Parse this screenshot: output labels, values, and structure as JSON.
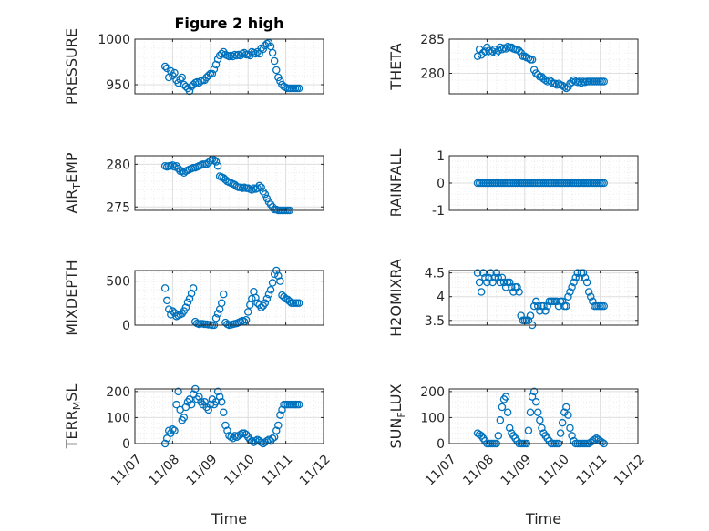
{
  "colors": {
    "marker": "#0072bd",
    "axis": "#262626",
    "grid": "#dfdfdf",
    "minorgrid": "#ececec"
  },
  "chart_data": [
    {
      "type": "scatter",
      "title": "Figure 2 high",
      "ylabel": "PRESSURE",
      "ylabel_sub": "",
      "ylim": [
        940,
        1000
      ],
      "yticks": [
        950,
        1000
      ],
      "ytick_labels": [
        "950",
        "1000"
      ],
      "xlabel": "",
      "show_xticks": false,
      "x": [
        7.8,
        7.85,
        7.9,
        7.95,
        8.0,
        8.05,
        8.1,
        8.15,
        8.2,
        8.25,
        8.3,
        8.35,
        8.4,
        8.45,
        8.5,
        8.55,
        8.6,
        8.65,
        8.7,
        8.75,
        8.8,
        8.85,
        8.9,
        8.95,
        9.0,
        9.05,
        9.1,
        9.15,
        9.2,
        9.25,
        9.3,
        9.35,
        9.4,
        9.45,
        9.5,
        9.55,
        9.6,
        9.65,
        9.7,
        9.75,
        9.8,
        9.85,
        9.9,
        9.95,
        10.0,
        10.05,
        10.1,
        10.15,
        10.2,
        10.25,
        10.3,
        10.35,
        10.4,
        10.45,
        10.5,
        10.55,
        10.6,
        10.65,
        10.7,
        10.75,
        10.8,
        10.85,
        10.9,
        10.95,
        11.0,
        11.05,
        11.1,
        11.15,
        11.2,
        11.25,
        11.3,
        11.35
      ],
      "y": [
        970,
        968,
        958,
        965,
        960,
        963,
        955,
        952,
        956,
        958,
        950,
        948,
        946,
        943,
        948,
        950,
        952,
        953,
        952,
        954,
        955,
        955,
        958,
        960,
        962,
        962,
        967,
        972,
        978,
        982,
        984,
        986,
        983,
        982,
        981,
        982,
        981,
        983,
        982,
        983,
        982,
        984,
        985,
        983,
        983,
        982,
        986,
        985,
        984,
        986,
        984,
        990,
        989,
        993,
        995,
        996,
        992,
        985,
        976,
        966,
        958,
        954,
        950,
        948,
        947,
        946,
        946,
        946,
        946,
        946,
        946,
        946
      ]
    },
    {
      "type": "scatter",
      "title": "",
      "ylabel": "THETA",
      "ylabel_sub": "",
      "ylim": [
        277,
        285
      ],
      "yticks": [
        280,
        285
      ],
      "ytick_labels": [
        "280",
        "285"
      ],
      "xlabel": "",
      "show_xticks": false,
      "x": [
        7.75,
        7.8,
        7.85,
        7.9,
        7.95,
        8.0,
        8.05,
        8.1,
        8.15,
        8.2,
        8.25,
        8.3,
        8.35,
        8.4,
        8.45,
        8.5,
        8.55,
        8.6,
        8.65,
        8.7,
        8.75,
        8.8,
        8.85,
        8.9,
        8.95,
        9.0,
        9.05,
        9.1,
        9.15,
        9.2,
        9.25,
        9.3,
        9.35,
        9.4,
        9.45,
        9.5,
        9.55,
        9.6,
        9.65,
        9.7,
        9.75,
        9.8,
        9.85,
        9.9,
        9.95,
        10.0,
        10.05,
        10.1,
        10.15,
        10.2,
        10.25,
        10.3,
        10.35,
        10.4,
        10.45,
        10.5,
        10.55,
        10.6,
        10.65,
        10.7,
        10.75,
        10.8,
        10.85,
        10.9,
        10.95,
        11.0,
        11.05,
        11.1
      ],
      "y": [
        282.5,
        283.5,
        282.7,
        283.0,
        283.2,
        283.8,
        283.3,
        283.0,
        283.2,
        283.5,
        283.0,
        283.3,
        283.8,
        283.5,
        283.7,
        283.6,
        283.9,
        283.8,
        283.8,
        283.6,
        283.5,
        283.5,
        283.3,
        283.0,
        282.5,
        282.5,
        282.3,
        282.2,
        282.0,
        282.0,
        280.5,
        280.0,
        279.8,
        279.5,
        279.5,
        279.2,
        279.0,
        278.8,
        279.0,
        278.8,
        278.5,
        278.5,
        278.3,
        278.5,
        278.3,
        278.2,
        278.0,
        277.8,
        278.0,
        278.5,
        278.7,
        279.0,
        278.8,
        278.7,
        278.8,
        278.6,
        278.8,
        278.7,
        278.8,
        278.8,
        278.8,
        278.8,
        278.8,
        278.8,
        278.8,
        278.8,
        278.8,
        278.8
      ]
    },
    {
      "type": "scatter",
      "title": "",
      "ylabel": "AIR",
      "ylabel_sub": "T",
      "ylabel_rest": "EMP",
      "ylim": [
        274.6,
        281
      ],
      "yticks": [
        275,
        280
      ],
      "ytick_labels": [
        "275",
        "280"
      ],
      "xlabel": "",
      "show_xticks": false,
      "x": [
        7.8,
        7.85,
        7.9,
        7.95,
        8.0,
        8.05,
        8.1,
        8.15,
        8.2,
        8.25,
        8.3,
        8.35,
        8.4,
        8.45,
        8.5,
        8.55,
        8.6,
        8.65,
        8.7,
        8.75,
        8.8,
        8.85,
        8.9,
        8.95,
        9.0,
        9.05,
        9.1,
        9.15,
        9.2,
        9.25,
        9.3,
        9.35,
        9.4,
        9.45,
        9.5,
        9.55,
        9.6,
        9.65,
        9.7,
        9.75,
        9.8,
        9.85,
        9.9,
        9.95,
        10.0,
        10.05,
        10.1,
        10.15,
        10.2,
        10.25,
        10.3,
        10.35,
        10.4,
        10.45,
        10.5,
        10.55,
        10.6,
        10.65,
        10.7,
        10.75,
        10.8,
        10.85,
        10.9,
        10.95,
        11.0,
        11.05,
        11.1
      ],
      "y": [
        279.8,
        279.7,
        279.8,
        279.8,
        279.9,
        279.7,
        279.8,
        279.5,
        279.2,
        279.2,
        279.0,
        279.2,
        279.3,
        279.4,
        279.5,
        279.6,
        279.6,
        279.7,
        279.8,
        279.9,
        280.0,
        280.0,
        280.0,
        280.2,
        280.4,
        280.6,
        280.5,
        280.3,
        279.8,
        278.6,
        278.5,
        278.4,
        278.2,
        278.0,
        277.9,
        277.8,
        277.7,
        277.6,
        277.4,
        277.3,
        277.3,
        277.2,
        277.3,
        277.2,
        277.2,
        277.1,
        277.0,
        277.2,
        277.1,
        277.2,
        277.5,
        277.3,
        276.8,
        276.5,
        276.0,
        275.6,
        275.3,
        275.0,
        274.7,
        274.7,
        274.6,
        274.6,
        274.6,
        274.6,
        274.6,
        274.6,
        274.6
      ]
    },
    {
      "type": "scatter",
      "title": "",
      "ylabel": "RAINFALL",
      "ylabel_sub": "",
      "ylim": [
        -1,
        1
      ],
      "yticks": [
        -1,
        0,
        1
      ],
      "ytick_labels": [
        "-1",
        "0",
        "1"
      ],
      "xlabel": "",
      "show_xticks": false,
      "x": [
        7.75,
        7.8,
        7.85,
        7.9,
        7.95,
        8.0,
        8.05,
        8.1,
        8.15,
        8.2,
        8.25,
        8.3,
        8.35,
        8.4,
        8.45,
        8.5,
        8.55,
        8.6,
        8.65,
        8.7,
        8.75,
        8.8,
        8.85,
        8.9,
        8.95,
        9.0,
        9.05,
        9.1,
        9.15,
        9.2,
        9.25,
        9.3,
        9.35,
        9.4,
        9.45,
        9.5,
        9.55,
        9.6,
        9.65,
        9.7,
        9.75,
        9.8,
        9.85,
        9.9,
        9.95,
        10.0,
        10.05,
        10.1,
        10.15,
        10.2,
        10.25,
        10.3,
        10.35,
        10.4,
        10.45,
        10.5,
        10.55,
        10.6,
        10.65,
        10.7,
        10.75,
        10.8,
        10.85,
        10.9,
        10.95,
        11.0,
        11.05,
        11.1
      ],
      "y": [
        0,
        0,
        0,
        0,
        0,
        0,
        0,
        0,
        0,
        0,
        0,
        0,
        0,
        0,
        0,
        0,
        0,
        0,
        0,
        0,
        0,
        0,
        0,
        0,
        0,
        0,
        0,
        0,
        0,
        0,
        0,
        0,
        0,
        0,
        0,
        0,
        0,
        0,
        0,
        0,
        0,
        0,
        0,
        0,
        0,
        0,
        0,
        0,
        0,
        0,
        0,
        0,
        0,
        0,
        0,
        0,
        0,
        0,
        0,
        0,
        0,
        0,
        0,
        0,
        0,
        0,
        0,
        0
      ]
    },
    {
      "type": "scatter",
      "title": "",
      "ylabel": "MIXDEPTH",
      "ylabel_sub": "",
      "ylim": [
        0,
        620
      ],
      "yticks": [
        0,
        500
      ],
      "ytick_labels": [
        "0",
        "500"
      ],
      "xlabel": "",
      "show_xticks": false,
      "x": [
        7.8,
        7.85,
        7.9,
        7.95,
        8.0,
        8.05,
        8.1,
        8.15,
        8.2,
        8.25,
        8.3,
        8.35,
        8.4,
        8.45,
        8.5,
        8.55,
        8.6,
        8.65,
        8.7,
        8.75,
        8.8,
        8.85,
        8.9,
        8.95,
        9.0,
        9.05,
        9.1,
        9.15,
        9.2,
        9.25,
        9.3,
        9.35,
        9.4,
        9.45,
        9.5,
        9.55,
        9.6,
        9.65,
        9.7,
        9.75,
        9.8,
        9.85,
        9.9,
        9.95,
        10.0,
        10.05,
        10.1,
        10.15,
        10.2,
        10.25,
        10.3,
        10.35,
        10.4,
        10.45,
        10.5,
        10.55,
        10.6,
        10.65,
        10.7,
        10.75,
        10.8,
        10.85,
        10.9,
        10.95,
        11.0,
        11.05,
        11.1,
        11.15,
        11.2,
        11.25,
        11.3,
        11.35
      ],
      "y": [
        420,
        280,
        180,
        120,
        160,
        140,
        100,
        110,
        120,
        130,
        160,
        200,
        260,
        300,
        360,
        420,
        40,
        20,
        10,
        15,
        15,
        10,
        10,
        5,
        5,
        0,
        0,
        80,
        130,
        180,
        250,
        350,
        30,
        10,
        0,
        5,
        10,
        15,
        20,
        30,
        40,
        50,
        40,
        60,
        150,
        230,
        300,
        380,
        310,
        250,
        230,
        200,
        220,
        250,
        300,
        350,
        400,
        480,
        580,
        620,
        560,
        500,
        340,
        320,
        300,
        290,
        270,
        250,
        250,
        250,
        250,
        250
      ]
    },
    {
      "type": "scatter",
      "title": "",
      "ylabel": "H2OMIXRA",
      "ylabel_sub": "",
      "ylim": [
        3.4,
        4.55
      ],
      "yticks": [
        3.5,
        4,
        4.5
      ],
      "ytick_labels": [
        "3.5",
        "4",
        "4.5"
      ],
      "xlabel": "",
      "show_xticks": false,
      "x": [
        7.75,
        7.8,
        7.85,
        7.9,
        7.95,
        8.0,
        8.05,
        8.1,
        8.15,
        8.2,
        8.25,
        8.3,
        8.35,
        8.4,
        8.45,
        8.5,
        8.55,
        8.6,
        8.65,
        8.7,
        8.75,
        8.8,
        8.85,
        8.9,
        8.95,
        9.0,
        9.05,
        9.1,
        9.15,
        9.2,
        9.25,
        9.3,
        9.35,
        9.4,
        9.45,
        9.5,
        9.55,
        9.6,
        9.65,
        9.7,
        9.75,
        9.8,
        9.85,
        9.9,
        9.95,
        10.0,
        10.05,
        10.1,
        10.15,
        10.2,
        10.25,
        10.3,
        10.35,
        10.4,
        10.45,
        10.5,
        10.55,
        10.6,
        10.65,
        10.7,
        10.75,
        10.8,
        10.85,
        10.9,
        10.95,
        11.0,
        11.05,
        11.1
      ],
      "y": [
        4.5,
        4.3,
        4.1,
        4.5,
        4.4,
        4.3,
        4.4,
        4.5,
        4.3,
        4.4,
        4.5,
        4.4,
        4.3,
        4.4,
        4.3,
        4.2,
        4.3,
        4.3,
        4.2,
        4.1,
        4.2,
        4.2,
        4.1,
        3.6,
        3.5,
        3.5,
        3.5,
        3.5,
        3.6,
        3.4,
        3.8,
        3.9,
        3.8,
        3.7,
        3.8,
        3.8,
        3.7,
        3.8,
        3.9,
        3.9,
        3.9,
        3.9,
        3.9,
        3.8,
        3.9,
        3.9,
        3.8,
        3.8,
        4.0,
        4.1,
        4.2,
        4.3,
        4.4,
        4.5,
        4.4,
        4.5,
        4.5,
        4.4,
        4.3,
        4.1,
        4.0,
        3.9,
        3.8,
        3.8,
        3.8,
        3.8,
        3.8,
        3.8
      ]
    },
    {
      "type": "scatter",
      "title": "",
      "ylabel": "TERR",
      "ylabel_sub": "M",
      "ylabel_rest": "SL",
      "ylim": [
        0,
        210
      ],
      "yticks": [
        0,
        100,
        200
      ],
      "ytick_labels": [
        "0",
        "100",
        "200"
      ],
      "xlabel": "Time",
      "show_xticks": true,
      "x": [
        7.8,
        7.85,
        7.9,
        7.95,
        8.0,
        8.05,
        8.1,
        8.15,
        8.2,
        8.25,
        8.3,
        8.35,
        8.4,
        8.45,
        8.5,
        8.55,
        8.6,
        8.65,
        8.7,
        8.75,
        8.8,
        8.85,
        8.9,
        8.95,
        9.0,
        9.05,
        9.1,
        9.15,
        9.2,
        9.25,
        9.3,
        9.35,
        9.4,
        9.45,
        9.5,
        9.55,
        9.6,
        9.65,
        9.7,
        9.75,
        9.8,
        9.85,
        9.9,
        9.95,
        10.0,
        10.05,
        10.1,
        10.15,
        10.2,
        10.25,
        10.3,
        10.35,
        10.4,
        10.45,
        10.5,
        10.55,
        10.6,
        10.65,
        10.7,
        10.75,
        10.8,
        10.85,
        10.9,
        10.95,
        11.0,
        11.05,
        11.1,
        11.15,
        11.2,
        11.25,
        11.3,
        11.35
      ],
      "y": [
        0,
        20,
        50,
        40,
        55,
        50,
        150,
        200,
        130,
        90,
        100,
        140,
        160,
        170,
        150,
        190,
        210,
        170,
        180,
        160,
        150,
        160,
        140,
        130,
        150,
        170,
        150,
        160,
        200,
        180,
        160,
        120,
        70,
        50,
        30,
        25,
        20,
        30,
        25,
        30,
        35,
        40,
        40,
        35,
        25,
        15,
        10,
        5,
        10,
        15,
        10,
        5,
        0,
        5,
        10,
        15,
        10,
        20,
        25,
        50,
        70,
        110,
        130,
        150,
        150,
        150,
        150,
        150,
        150,
        150,
        150,
        150
      ]
    },
    {
      "type": "scatter",
      "title": "",
      "ylabel": "SUN",
      "ylabel_sub": "F",
      "ylabel_rest": "LUX",
      "ylim": [
        0,
        210
      ],
      "yticks": [
        0,
        100,
        200
      ],
      "ytick_labels": [
        "0",
        "100",
        "200"
      ],
      "xlabel": "Time",
      "show_xticks": true,
      "x": [
        7.75,
        7.8,
        7.85,
        7.9,
        7.95,
        8.0,
        8.05,
        8.1,
        8.15,
        8.2,
        8.25,
        8.3,
        8.35,
        8.4,
        8.45,
        8.5,
        8.55,
        8.6,
        8.65,
        8.7,
        8.75,
        8.8,
        8.85,
        8.9,
        8.95,
        9.0,
        9.05,
        9.1,
        9.15,
        9.2,
        9.25,
        9.3,
        9.35,
        9.4,
        9.45,
        9.5,
        9.55,
        9.6,
        9.65,
        9.7,
        9.75,
        9.8,
        9.85,
        9.9,
        9.95,
        10.0,
        10.05,
        10.1,
        10.15,
        10.2,
        10.25,
        10.3,
        10.35,
        10.4,
        10.45,
        10.5,
        10.55,
        10.6,
        10.65,
        10.7,
        10.75,
        10.8,
        10.85,
        10.9,
        10.95,
        11.0,
        11.05,
        11.1
      ],
      "y": [
        40,
        35,
        30,
        20,
        10,
        0,
        0,
        0,
        0,
        0,
        0,
        30,
        90,
        140,
        170,
        180,
        120,
        60,
        40,
        30,
        20,
        10,
        0,
        0,
        0,
        0,
        0,
        50,
        120,
        180,
        200,
        160,
        120,
        90,
        60,
        40,
        30,
        20,
        10,
        0,
        0,
        0,
        0,
        0,
        40,
        80,
        120,
        140,
        110,
        60,
        30,
        10,
        0,
        0,
        0,
        0,
        0,
        0,
        0,
        0,
        5,
        10,
        15,
        20,
        15,
        10,
        5,
        0
      ]
    }
  ],
  "shared_x": {
    "xlim": [
      7,
      12
    ],
    "ticks": [
      7,
      8,
      9,
      10,
      11,
      12
    ],
    "tick_labels": [
      "11/07",
      "11/08",
      "11/09",
      "11/10",
      "11/11",
      "11/12"
    ],
    "label": "Time"
  }
}
